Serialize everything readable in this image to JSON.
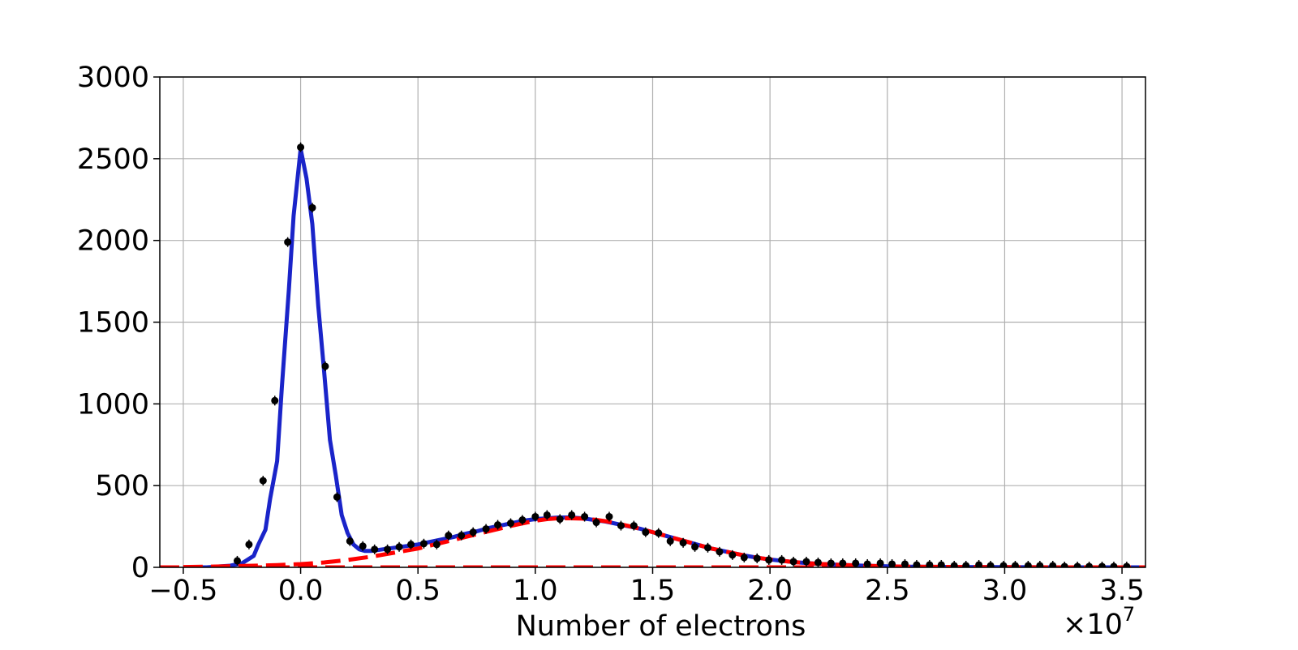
{
  "chart_data": {
    "type": "scatter",
    "title": "",
    "xlabel": "Number of electrons",
    "ylabel": "",
    "x_offset_label": "×10",
    "x_offset_exponent": "7",
    "xlim": [
      -0.6,
      3.6
    ],
    "ylim": [
      0,
      3000
    ],
    "grid": true,
    "x_ticks": [
      -0.5,
      0.0,
      0.5,
      1.0,
      1.5,
      2.0,
      2.5,
      3.0,
      3.5
    ],
    "x_tick_labels": [
      "−0.5",
      "0.0",
      "0.5",
      "1.0",
      "1.5",
      "2.0",
      "2.5",
      "3.0",
      "3.5"
    ],
    "y_ticks": [
      0,
      500,
      1000,
      1500,
      2000,
      2500,
      3000
    ],
    "y_tick_labels": [
      "0",
      "500",
      "1000",
      "1500",
      "2000",
      "2500",
      "3000"
    ],
    "colors": {
      "points": "#000000",
      "total_fit": "#1a24c9",
      "signal_fit": "#ff0000",
      "grid": "#b0b0b0"
    },
    "series": [
      {
        "kind": "points",
        "x": [
          -0.27,
          -0.22,
          -0.16,
          -0.11,
          -0.055,
          0.0,
          0.05,
          0.105,
          0.155,
          0.21,
          0.265,
          0.315,
          0.37,
          0.42,
          0.47,
          0.525,
          0.58,
          0.63,
          0.685,
          0.735,
          0.79,
          0.84,
          0.895,
          0.945,
          1.0,
          1.05,
          1.105,
          1.155,
          1.21,
          1.26,
          1.315,
          1.365,
          1.42,
          1.47,
          1.525,
          1.575,
          1.63,
          1.68,
          1.735,
          1.785,
          1.84,
          1.89,
          1.945,
          1.995,
          2.05,
          2.1,
          2.155,
          2.205,
          2.26,
          2.31,
          2.365,
          2.415,
          2.47,
          2.52,
          2.575,
          2.625,
          2.68,
          2.73,
          2.785,
          2.835,
          2.89,
          2.94,
          2.995,
          3.045,
          3.1,
          3.15,
          3.205,
          3.255,
          3.31,
          3.36,
          3.415,
          3.465,
          3.52
        ],
        "y": [
          40,
          140,
          530,
          1020,
          1990,
          2570,
          2200,
          1230,
          430,
          160,
          130,
          110,
          110,
          125,
          140,
          145,
          140,
          195,
          195,
          215,
          235,
          260,
          270,
          290,
          310,
          320,
          295,
          320,
          310,
          275,
          310,
          255,
          255,
          215,
          210,
          160,
          150,
          125,
          120,
          95,
          75,
          60,
          55,
          45,
          45,
          35,
          35,
          30,
          25,
          25,
          25,
          20,
          25,
          20,
          20,
          15,
          15,
          15,
          10,
          10,
          15,
          10,
          10,
          10,
          10,
          10,
          10,
          5,
          5,
          5,
          5,
          5,
          5
        ]
      },
      {
        "kind": "line",
        "x": [
          -0.5,
          -0.45,
          -0.4,
          -0.35,
          -0.3,
          -0.25,
          -0.2,
          -0.18,
          -0.15,
          -0.13,
          -0.1,
          -0.08,
          -0.05,
          -0.03,
          0.0,
          0.025,
          0.05,
          0.075,
          0.1,
          0.125,
          0.15,
          0.175,
          0.2,
          0.225,
          0.25,
          0.275,
          0.3,
          0.35,
          0.4,
          0.45,
          0.5,
          0.55,
          0.6,
          0.65,
          0.7,
          0.75,
          0.8,
          0.85,
          0.9,
          0.95,
          1.0,
          1.05,
          1.1,
          1.15,
          1.2,
          1.25,
          1.3,
          1.35,
          1.4,
          1.45,
          1.5,
          1.55,
          1.6,
          1.65,
          1.7,
          1.75,
          1.8,
          1.85,
          1.9,
          1.95,
          2.0,
          2.1,
          2.2,
          2.3,
          2.4,
          2.5,
          2.6,
          2.8,
          3.0,
          3.2,
          3.4,
          3.6
        ],
        "y": [
          0,
          0,
          0,
          5,
          10,
          25,
          70,
          140,
          230,
          420,
          650,
          1100,
          1700,
          2150,
          2560,
          2380,
          2100,
          1600,
          1200,
          780,
          560,
          320,
          210,
          140,
          110,
          100,
          100,
          110,
          120,
          130,
          140,
          155,
          170,
          185,
          205,
          220,
          240,
          255,
          270,
          285,
          295,
          300,
          305,
          305,
          300,
          290,
          280,
          265,
          250,
          235,
          215,
          195,
          175,
          155,
          135,
          115,
          100,
          85,
          70,
          58,
          48,
          32,
          22,
          15,
          10,
          6,
          4,
          2,
          1,
          0,
          0,
          0
        ]
      },
      {
        "kind": "dashed-line",
        "x": [
          -0.5,
          -0.4,
          -0.3,
          -0.2,
          -0.1,
          0.0,
          0.1,
          0.2,
          0.3,
          0.4,
          0.5,
          0.6,
          0.7,
          0.8,
          0.9,
          1.0,
          1.05,
          1.1,
          1.15,
          1.2,
          1.25,
          1.3,
          1.35,
          1.4,
          1.45,
          1.5,
          1.55,
          1.6,
          1.65,
          1.7,
          1.75,
          1.8,
          1.85,
          1.9,
          1.95,
          2.0,
          2.1,
          2.2,
          2.3,
          2.4,
          2.5,
          2.6,
          2.8,
          3.0,
          3.2,
          3.4,
          3.6
        ],
        "y": [
          2,
          4,
          7,
          10,
          14,
          20,
          30,
          45,
          65,
          90,
          115,
          150,
          185,
          220,
          255,
          285,
          295,
          300,
          300,
          298,
          292,
          282,
          268,
          252,
          235,
          215,
          195,
          175,
          155,
          135,
          115,
          100,
          85,
          70,
          58,
          48,
          32,
          22,
          15,
          10,
          6,
          4,
          2,
          1,
          0,
          0,
          0
        ]
      },
      {
        "kind": "dashed-line",
        "x": [
          -0.6,
          3.6
        ],
        "y": [
          0,
          0
        ]
      }
    ]
  }
}
